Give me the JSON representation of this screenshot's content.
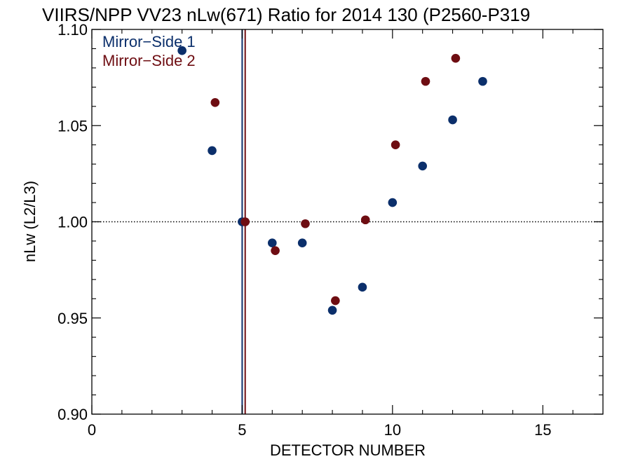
{
  "chart_data": {
    "type": "scatter",
    "title": "VIIRS/NPP VV23 nLw(671) Ratio for 2014 130 (P2560-P319",
    "xlabel": "DETECTOR NUMBER",
    "ylabel": "nLw (L2/L3)",
    "xlim": [
      0,
      17
    ],
    "ylim": [
      0.9,
      1.1
    ],
    "xticks": [
      "0",
      "5",
      "10",
      "15"
    ],
    "yticks": [
      "0.90",
      "0.95",
      "1.00",
      "1.05",
      "1.10"
    ],
    "reference_line_y": 1.0,
    "series": [
      {
        "name": "Mirror−Side 1",
        "color": "#0b2f6b",
        "x": [
          3,
          4,
          5,
          6,
          7,
          8,
          9,
          10,
          11,
          12,
          13
        ],
        "y": [
          1.089,
          1.037,
          1.0,
          0.989,
          0.989,
          0.954,
          0.966,
          1.01,
          1.029,
          1.053,
          1.073
        ],
        "vline_x": 5.0
      },
      {
        "name": "Mirror−Side 2",
        "color": "#6e0d12",
        "x": [
          4.1,
          5.1,
          6.1,
          7.1,
          8.1,
          9.1,
          10.1,
          11.1,
          12.1
        ],
        "y": [
          1.062,
          1.0,
          0.985,
          0.999,
          0.959,
          1.001,
          1.04,
          1.073,
          1.085
        ],
        "vline_x": 5.1
      }
    ]
  }
}
